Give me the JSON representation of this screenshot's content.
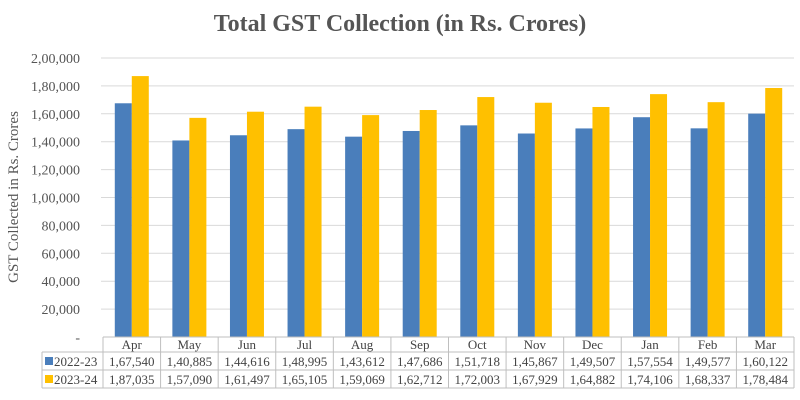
{
  "chart_data": {
    "type": "bar",
    "title": "Total GST Collection (in Rs. Crores)",
    "ylabel": "GST Collected in Rs. Crores",
    "xlabel": "",
    "ylim": [
      0,
      200000
    ],
    "yticks": [
      "-",
      "20,000",
      "40,000",
      "60,000",
      "80,000",
      "1,00,000",
      "1,20,000",
      "1,40,000",
      "1,60,000",
      "1,80,000",
      "2,00,000"
    ],
    "grid": true,
    "legend": "data-table",
    "categories": [
      "Apr",
      "May",
      "Jun",
      "Jul",
      "Aug",
      "Sep",
      "Oct",
      "Nov",
      "Dec",
      "Jan",
      "Feb",
      "Mar"
    ],
    "series": [
      {
        "name": "2022-23",
        "color": "#4a7ebb",
        "values": [
          167540,
          140885,
          144616,
          148995,
          143612,
          147686,
          151718,
          145867,
          149507,
          157554,
          149577,
          160122
        ],
        "labels": [
          "1,67,540",
          "1,40,885",
          "1,44,616",
          "1,48,995",
          "1,43,612",
          "1,47,686",
          "1,51,718",
          "1,45,867",
          "1,49,507",
          "1,57,554",
          "1,49,577",
          "1,60,122"
        ]
      },
      {
        "name": "2023-24",
        "color": "#ffc000",
        "values": [
          187035,
          157090,
          161497,
          165105,
          159069,
          162712,
          172003,
          167929,
          164882,
          174106,
          168337,
          178484
        ],
        "labels": [
          "1,87,035",
          "1,57,090",
          "1,61,497",
          "1,65,105",
          "1,59,069",
          "1,62,712",
          "1,72,003",
          "1,67,929",
          "1,64,882",
          "1,74,106",
          "1,68,337",
          "1,78,484"
        ]
      }
    ]
  }
}
